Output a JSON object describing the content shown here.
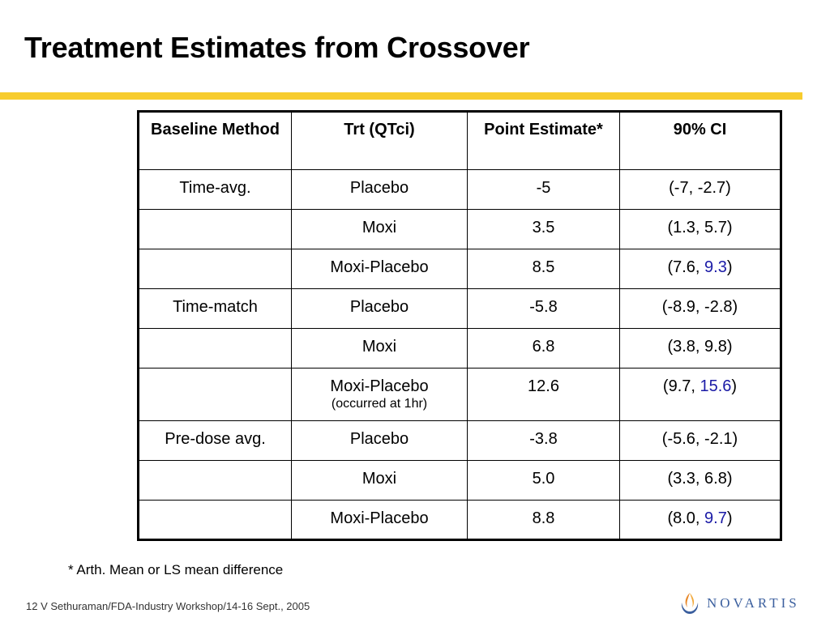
{
  "slide": {
    "title": "Treatment Estimates from Crossover",
    "footnote": "* Arth. Mean or LS mean difference",
    "footer": "12 V Sethuraman/FDA-Industry Workshop/14-16 Sept., 2005",
    "logo_text": "NOVARTIS"
  },
  "table": {
    "headers": [
      "Baseline Method",
      "Trt (QTci)",
      "Point Estimate*",
      "90% CI"
    ],
    "rows": [
      {
        "method": "Time-avg.",
        "trt": "Placebo",
        "note": "",
        "est": "-5",
        "ci_a": "(-7, ",
        "ci_b": "-2.7",
        "ci_c": ")",
        "ci_b_color": "#000000"
      },
      {
        "method": "",
        "trt": "Moxi",
        "note": "",
        "est": "3.5",
        "ci_a": "(1.3, ",
        "ci_b": "5.7",
        "ci_c": ")",
        "ci_b_color": "#000000"
      },
      {
        "method": "",
        "trt": "Moxi-Placebo",
        "note": "",
        "est": "8.5",
        "ci_a": "(7.6, ",
        "ci_b": "9.3",
        "ci_c": ")",
        "ci_b_color": "#1a1aa6"
      },
      {
        "method": "Time-match",
        "trt": "Placebo",
        "note": "",
        "est": "-5.8",
        "ci_a": "(-8.9, ",
        "ci_b": "-2.8",
        "ci_c": ")",
        "ci_b_color": "#000000"
      },
      {
        "method": "",
        "trt": "Moxi",
        "note": "",
        "est": "6.8",
        "ci_a": "(3.8, ",
        "ci_b": "9.8",
        "ci_c": ")",
        "ci_b_color": "#000000"
      },
      {
        "method": "",
        "trt": "Moxi-Placebo",
        "note": "(occurred at 1hr)",
        "est": "12.6",
        "ci_a": "(9.7, ",
        "ci_b": "15.6",
        "ci_c": ")",
        "ci_b_color": "#1a1aa6"
      },
      {
        "method": "Pre-dose avg.",
        "trt": "Placebo",
        "note": "",
        "est": "-3.8",
        "ci_a": "(-5.6, ",
        "ci_b": "-2.1",
        "ci_c": ")",
        "ci_b_color": "#000000"
      },
      {
        "method": "",
        "trt": "Moxi",
        "note": "",
        "est": "5.0",
        "ci_a": "(3.3, ",
        "ci_b": "6.8",
        "ci_c": ")",
        "ci_b_color": "#000000"
      },
      {
        "method": "",
        "trt": "Moxi-Placebo",
        "note": "",
        "est": "8.8",
        "ci_a": "(8.0, ",
        "ci_b": "9.7",
        "ci_c": ")",
        "ci_b_color": "#1a1aa6"
      }
    ]
  },
  "colors": {
    "accent_rule": "#f7cc2e",
    "highlight_text": "#1a1aa6",
    "logo_blue": "#3b5f9e",
    "logo_orange": "#e8892b"
  }
}
